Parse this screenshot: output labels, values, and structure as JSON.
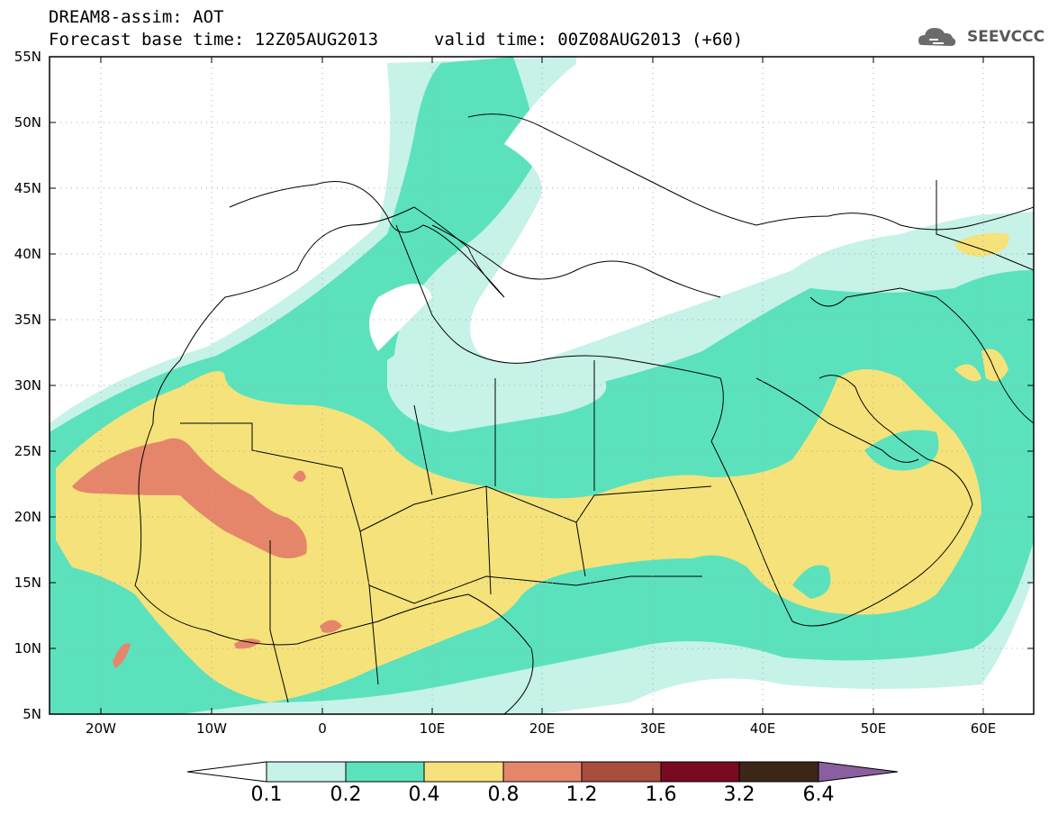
{
  "header": {
    "title_line1": "DREAM8-assim: AOT",
    "title_line2": "Forecast base time: 12Z05AUG2013",
    "valid_time": "valid time: 00Z08AUG2013 (+60)"
  },
  "logo": {
    "text": "SEEVCCC",
    "icon": "cloud-icon"
  },
  "map": {
    "lat_labels": [
      "55N",
      "50N",
      "45N",
      "40N",
      "35N",
      "30N",
      "25N",
      "20N",
      "15N",
      "10N",
      "5N"
    ],
    "lon_labels": [
      "20W",
      "10W",
      "0",
      "10E",
      "20E",
      "30E",
      "40E",
      "50E",
      "60E"
    ]
  },
  "colorbar": {
    "levels": [
      "0.1",
      "0.2",
      "0.4",
      "0.8",
      "1.2",
      "1.6",
      "3.2",
      "6.4"
    ],
    "colors": [
      "#c6f2e7",
      "#5be2bd",
      "#f5e27a",
      "#e5866b",
      "#a84e3e",
      "#7a0a22",
      "#3c2618",
      "#8a5f9f"
    ]
  }
}
